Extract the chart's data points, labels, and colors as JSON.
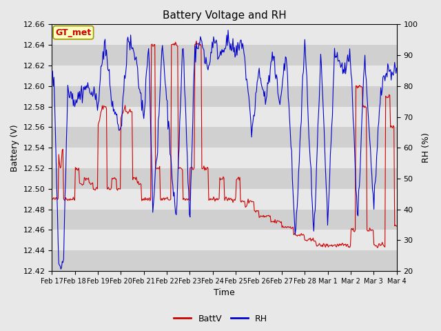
{
  "title": "Battery Voltage and RH",
  "xlabel": "Time",
  "ylabel_left": "Battery (V)",
  "ylabel_right": "RH (%)",
  "annotation": "GT_met",
  "ylim_left": [
    12.42,
    12.66
  ],
  "ylim_right": [
    20,
    100
  ],
  "yticks_left": [
    12.42,
    12.44,
    12.46,
    12.48,
    12.5,
    12.52,
    12.54,
    12.56,
    12.58,
    12.6,
    12.62,
    12.64,
    12.66
  ],
  "yticks_right": [
    20,
    30,
    40,
    50,
    60,
    70,
    80,
    90,
    100
  ],
  "xtick_labels": [
    "Feb 17",
    "Feb 18",
    "Feb 19",
    "Feb 20",
    "Feb 21",
    "Feb 22",
    "Feb 23",
    "Feb 24",
    "Feb 25",
    "Feb 26",
    "Feb 27",
    "Feb 28",
    "Mar 1",
    "Mar 2",
    "Mar 3",
    "Mar 4"
  ],
  "bg_color": "#e8e8e8",
  "band_color_dark": "#d0d0d0",
  "band_color_light": "#e8e8e8",
  "line_color_batt": "#cc0000",
  "line_color_rh": "#0000cc",
  "legend_labels": [
    "BattV",
    "RH"
  ],
  "num_points": 500,
  "figsize": [
    6.4,
    4.8
  ],
  "dpi": 100
}
